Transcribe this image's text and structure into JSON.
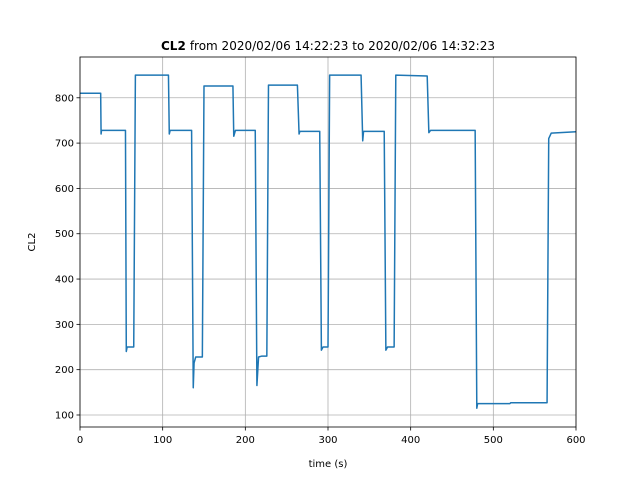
{
  "chart_data": {
    "type": "line",
    "title_bold": "CL2",
    "title": "from 2020/02/06 14:22:23 to 2020/02/06 14:32:23",
    "xlabel": "time (s)",
    "ylabel": "CL2",
    "x": [
      0,
      25,
      25.5,
      26,
      55,
      56,
      57,
      65,
      67,
      107,
      108,
      109,
      135,
      137,
      138,
      140,
      148,
      150,
      185,
      186,
      188,
      212,
      214,
      216,
      220,
      226,
      228,
      263,
      265,
      266,
      290,
      292,
      294,
      300,
      302,
      340,
      342,
      343,
      368,
      370,
      372,
      380,
      382,
      420,
      422,
      424,
      478,
      480,
      481,
      520,
      521,
      565,
      567,
      570,
      600
    ],
    "series": [
      {
        "name": "CL2",
        "color": "#1f77b4",
        "values": [
          810,
          810,
          720,
          728,
          728,
          240,
          250,
          250,
          850,
          850,
          720,
          728,
          728,
          160,
          215,
          228,
          228,
          826,
          826,
          715,
          728,
          728,
          165,
          228,
          230,
          230,
          828,
          828,
          720,
          726,
          726,
          243,
          250,
          250,
          850,
          850,
          705,
          726,
          726,
          243,
          250,
          250,
          850,
          848,
          723,
          728,
          728,
          115,
          125,
          125,
          127,
          127,
          710,
          722,
          725
        ]
      }
    ],
    "xlim": [
      0,
      600
    ],
    "ylim": [
      73.5,
      890
    ],
    "xticks": [
      0,
      100,
      200,
      300,
      400,
      500,
      600
    ],
    "yticks": [
      100,
      200,
      300,
      400,
      500,
      600,
      700,
      800
    ],
    "grid": true
  }
}
